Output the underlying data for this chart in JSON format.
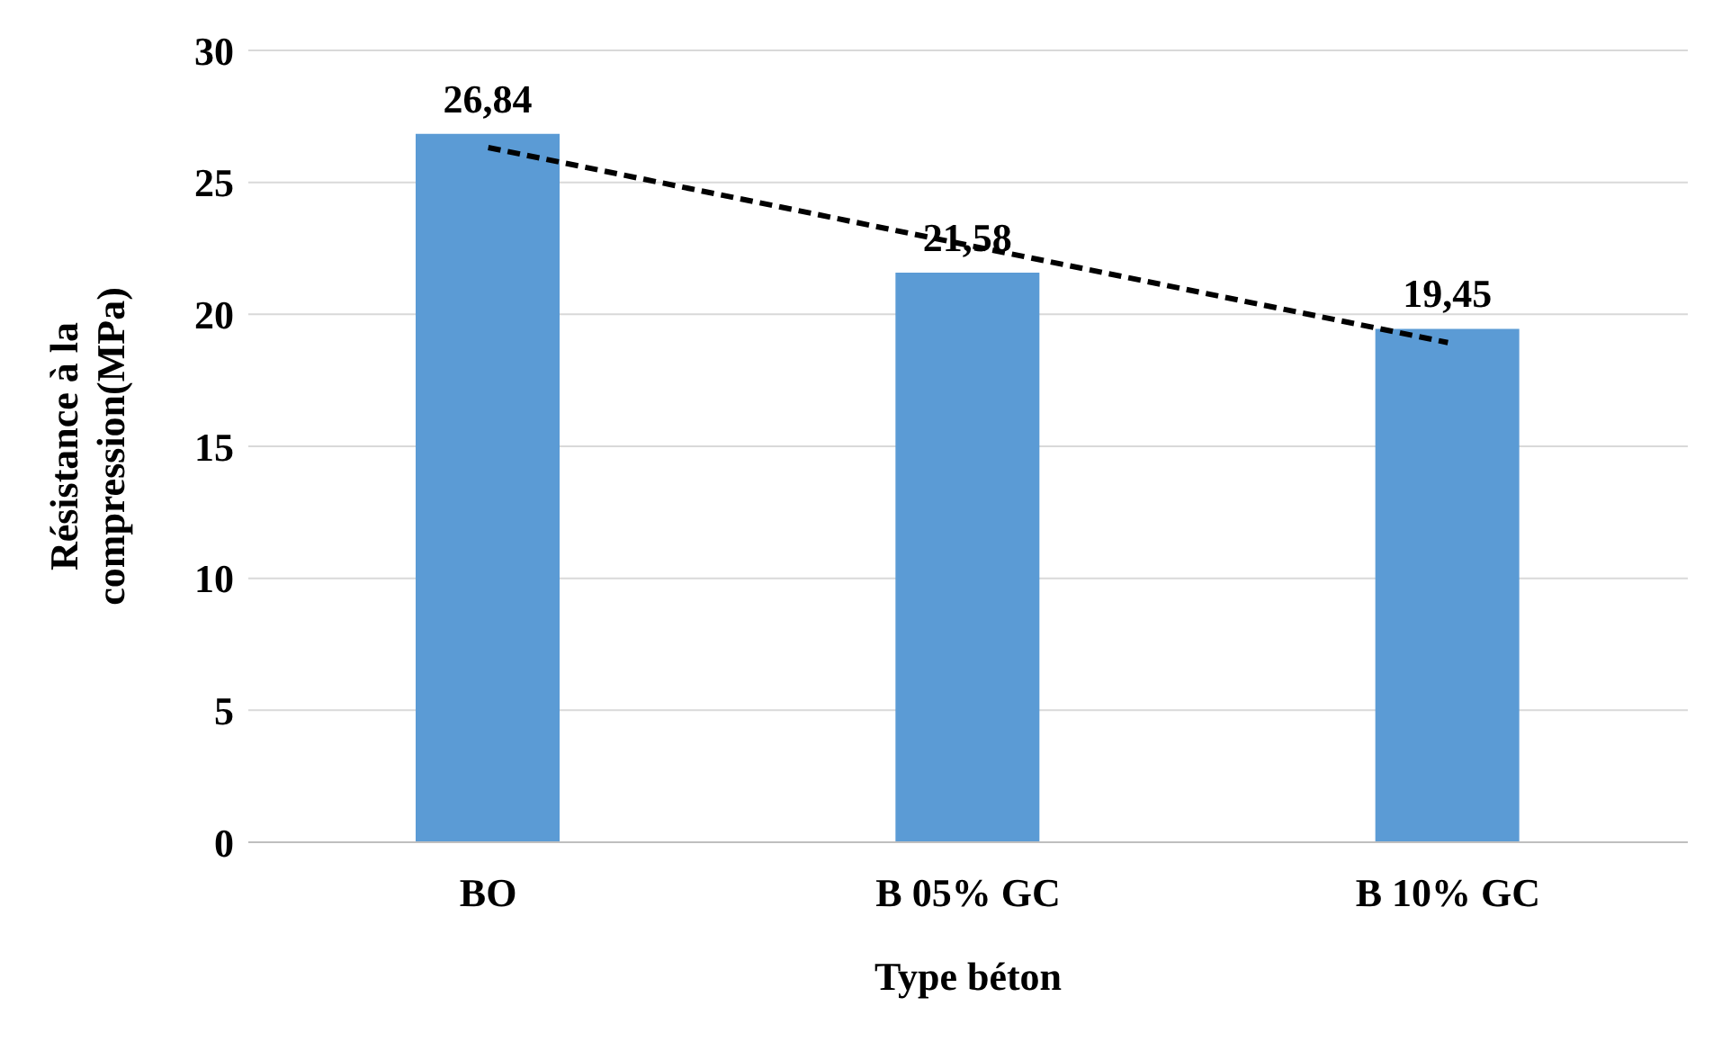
{
  "chart_data": {
    "type": "bar",
    "xlabel": "Type béton",
    "ylabel": "Résistance à la compression(MPa)",
    "categories": [
      "BO",
      "B 05% GC",
      "B 10% GC"
    ],
    "series": [
      {
        "color": "#5b9bd5",
        "values": [
          26.84,
          21.58,
          19.45
        ],
        "value_labels": [
          "26,84",
          "21,58",
          "19,45"
        ]
      },
      {
        "type": "line",
        "color": "#000000",
        "line_style": "dashed",
        "marker": "none",
        "values": [
          26.32,
          22.62,
          18.93
        ]
      }
    ],
    "ylim": [
      0,
      30
    ],
    "yticks": [
      0,
      5,
      10,
      15,
      20,
      25,
      30
    ],
    "grid": "y",
    "legend": false
  }
}
